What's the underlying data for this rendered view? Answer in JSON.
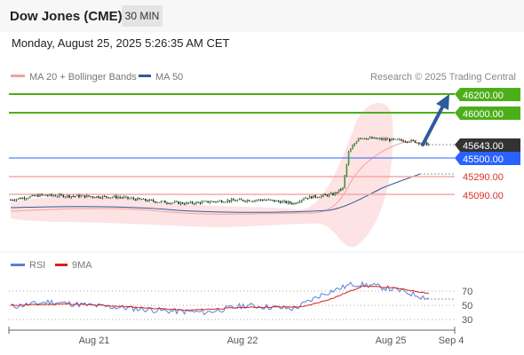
{
  "header": {
    "title": "Dow Jones (CME)",
    "timeframe": "30 MIN",
    "datetime": "Monday, August 25, 2025 5:26:35 AM CET"
  },
  "legend": {
    "items": [
      {
        "label": "MA 20 + Bollinger Bands",
        "color": "#f4a0a0"
      },
      {
        "label": "MA 50",
        "color": "#2e5b9b"
      }
    ],
    "credit": "Research © 2025 Trading Central"
  },
  "rsi_legend": {
    "items": [
      {
        "label": "RSI",
        "color": "#5b7fd6"
      },
      {
        "label": "9MA",
        "color": "#d42020"
      }
    ]
  },
  "colors": {
    "up_target": "#4caf1a",
    "current": "#333333",
    "support_blue": "#2962ff",
    "support_red": "#f7a8a8",
    "support_text": "#d9302b",
    "arrow": "#2e5b9b",
    "bollinger_fill": "#fde3e3"
  },
  "chart_data": [
    {
      "type": "candlestick",
      "title": "",
      "x_ticks": [
        "Aug 21",
        "Aug 22",
        "Aug 25",
        "Sep 4"
      ],
      "ylim": [
        44900,
        46300
      ],
      "levels": [
        {
          "value": 46200.0,
          "label": "46200.00",
          "kind": "resistance"
        },
        {
          "value": 46000.0,
          "label": "46000.00",
          "kind": "resistance"
        },
        {
          "value": 45643.0,
          "label": "45643.00",
          "kind": "last_price"
        },
        {
          "value": 45500.0,
          "label": "45500.00",
          "kind": "pivot"
        },
        {
          "value": 45290.0,
          "label": "45290.00",
          "kind": "support"
        },
        {
          "value": 45090.0,
          "label": "45090.00",
          "kind": "support"
        }
      ],
      "approx_close_path": [
        {
          "bar": 0,
          "close": 45030
        },
        {
          "bar": 15,
          "close": 45080
        },
        {
          "bar": 35,
          "close": 45070
        },
        {
          "bar": 55,
          "close": 45060
        },
        {
          "bar": 75,
          "close": 45010
        },
        {
          "bar": 90,
          "close": 44990
        },
        {
          "bar": 110,
          "close": 45020
        },
        {
          "bar": 130,
          "close": 45030
        },
        {
          "bar": 145,
          "close": 44990
        },
        {
          "bar": 150,
          "close": 45050
        },
        {
          "bar": 165,
          "close": 45090
        },
        {
          "bar": 170,
          "close": 45160
        },
        {
          "bar": 173,
          "close": 45550
        },
        {
          "bar": 178,
          "close": 45720
        },
        {
          "bar": 190,
          "close": 45700
        },
        {
          "bar": 205,
          "close": 45680
        },
        {
          "bar": 214,
          "close": 45643
        }
      ],
      "forecast_arrow": {
        "from": 45643.0,
        "to": 46200.0
      }
    },
    {
      "type": "line",
      "title": "RSI",
      "ylim": [
        20,
        90
      ],
      "y_ticks": [
        70,
        50,
        30
      ],
      "series": [
        {
          "name": "RSI",
          "approx_values": [
            {
              "bar": 0,
              "value": 48
            },
            {
              "bar": 20,
              "value": 55
            },
            {
              "bar": 40,
              "value": 50
            },
            {
              "bar": 60,
              "value": 46
            },
            {
              "bar": 80,
              "value": 42
            },
            {
              "bar": 100,
              "value": 40
            },
            {
              "bar": 120,
              "value": 50
            },
            {
              "bar": 145,
              "value": 45
            },
            {
              "bar": 160,
              "value": 66
            },
            {
              "bar": 175,
              "value": 80
            },
            {
              "bar": 185,
              "value": 78
            },
            {
              "bar": 200,
              "value": 70
            },
            {
              "bar": 214,
              "value": 60
            }
          ]
        },
        {
          "name": "9MA",
          "approx_values": [
            {
              "bar": 0,
              "value": 50
            },
            {
              "bar": 30,
              "value": 52
            },
            {
              "bar": 60,
              "value": 48
            },
            {
              "bar": 90,
              "value": 43
            },
            {
              "bar": 120,
              "value": 47
            },
            {
              "bar": 150,
              "value": 48
            },
            {
              "bar": 165,
              "value": 60
            },
            {
              "bar": 180,
              "value": 77
            },
            {
              "bar": 195,
              "value": 75
            },
            {
              "bar": 214,
              "value": 67
            }
          ]
        }
      ]
    }
  ]
}
